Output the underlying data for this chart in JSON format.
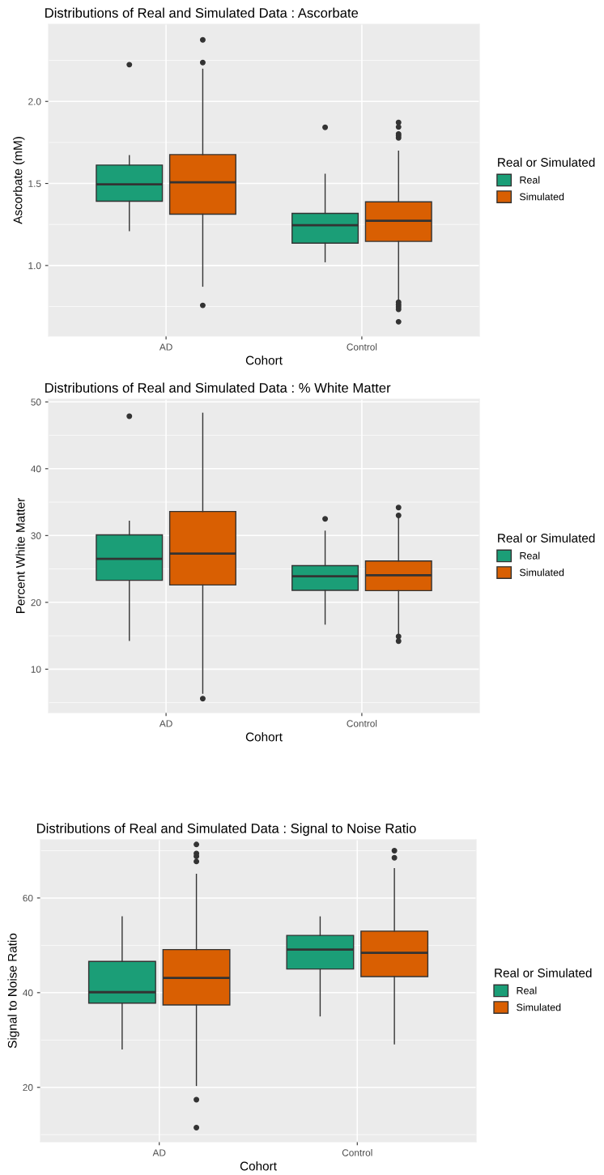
{
  "chart_data": [
    {
      "type": "box",
      "title": "Distributions of Real and Simulated Data : Ascorbate",
      "xlabel": "Cohort",
      "ylabel": "Ascorbate (mM)",
      "legend_title": "Real or Simulated",
      "categories": [
        "AD",
        "Control"
      ],
      "ylim": [
        0.57,
        2.47
      ],
      "yticks": [
        {
          "value": 1.0,
          "label": "1.0"
        },
        {
          "value": 1.5,
          "label": "1.5"
        },
        {
          "value": 2.0,
          "label": "2.0"
        }
      ],
      "grid": true,
      "legend": "right",
      "series": [
        {
          "name": "Real",
          "color": "#1b9e77",
          "boxes": [
            {
              "low": 1.213,
              "q1": 1.392,
              "median": 1.495,
              "q3": 1.612,
              "high": 1.67,
              "outliers": [
                2.224
              ]
            },
            {
              "low": 1.023,
              "q1": 1.136,
              "median": 1.245,
              "q3": 1.318,
              "high": 1.556,
              "outliers": [
                1.842
              ]
            }
          ]
        },
        {
          "name": "Simulated",
          "color": "#d95f02",
          "boxes": [
            {
              "low": 0.874,
              "q1": 1.313,
              "median": 1.507,
              "q3": 1.676,
              "high": 2.196,
              "outliers": [
                2.375,
                2.237,
                0.757
              ]
            },
            {
              "low": 0.785,
              "q1": 1.147,
              "median": 1.273,
              "q3": 1.388,
              "high": 1.697,
              "outliers": [
                1.872,
                1.844,
                1.802,
                1.791,
                1.778,
                0.776,
                0.761,
                0.748,
                0.733,
                0.657
              ]
            }
          ]
        }
      ]
    },
    {
      "type": "box",
      "title": "Distributions of Real and Simulated Data : % White Matter",
      "xlabel": "Cohort",
      "ylabel": "Percent White Matter",
      "legend_title": "Real or Simulated",
      "categories": [
        "AD",
        "Control"
      ],
      "ylim": [
        3.5,
        50.4
      ],
      "yticks": [
        10,
        20,
        30,
        40,
        50
      ],
      "grid": true,
      "legend": "right",
      "series": [
        {
          "name": "Real",
          "color": "#1b9e77",
          "boxes": [
            {
              "low": 14.3,
              "q1": 23.3,
              "median": 26.5,
              "q3": 30.1,
              "high": 32.15,
              "outliers": [
                47.85
              ]
            },
            {
              "low": 16.75,
              "q1": 21.8,
              "median": 23.9,
              "q3": 25.5,
              "high": 30.65,
              "outliers": [
                32.5
              ]
            }
          ]
        },
        {
          "name": "Simulated",
          "color": "#d95f02",
          "boxes": [
            {
              "low": 6.4,
              "q1": 22.6,
              "median": 27.3,
              "q3": 33.6,
              "high": 48.3,
              "outliers": [
                5.6
              ]
            },
            {
              "low": 15.2,
              "q1": 21.75,
              "median": 24.05,
              "q3": 26.2,
              "high": 32.8,
              "outliers": [
                34.2,
                33.0,
                14.9,
                14.2
              ]
            }
          ]
        }
      ]
    },
    {
      "type": "box",
      "title": "Distributions of Real and Simulated Data : Signal to Noise Ratio",
      "xlabel": "Cohort",
      "ylabel": "Signal to Noise Ratio",
      "legend_title": "Real or Simulated",
      "categories": [
        "AD",
        "Control"
      ],
      "ylim": [
        8.5,
        72.3
      ],
      "yticks": [
        20,
        40,
        60
      ],
      "grid": true,
      "legend": "right",
      "series": [
        {
          "name": "Real",
          "color": "#1b9e77",
          "boxes": [
            {
              "low": 28.1,
              "q1": 37.8,
              "median": 40.1,
              "q3": 46.6,
              "high": 56.0
            },
            {
              "low": 35.1,
              "q1": 45.0,
              "median": 49.1,
              "q3": 52.1,
              "high": 56.0
            }
          ]
        },
        {
          "name": "Simulated",
          "color": "#d95f02",
          "boxes": [
            {
              "low": 20.4,
              "q1": 37.4,
              "median": 43.1,
              "q3": 49.1,
              "high": 65.0,
              "outliers": [
                71.3,
                69.4,
                68.8,
                67.7,
                17.4,
                11.5
              ]
            },
            {
              "low": 29.2,
              "q1": 43.4,
              "median": 48.4,
              "q3": 53.0,
              "high": 66.2,
              "outliers": [
                70.0,
                68.5
              ]
            }
          ]
        }
      ]
    }
  ]
}
